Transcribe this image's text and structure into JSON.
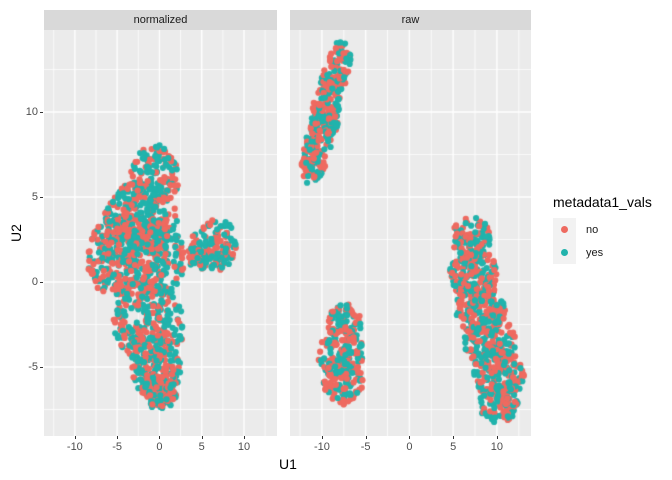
{
  "chart_data": {
    "type": "scatter",
    "title": "",
    "xlabel": "U1",
    "ylabel": "U2",
    "x_ticks": [
      -10,
      -5,
      0,
      5,
      10
    ],
    "y_ticks": [
      10,
      5,
      0,
      -5
    ],
    "xlim": [
      -13.65,
      13.9
    ],
    "ylim": [
      -9.06,
      14.82
    ],
    "grid": "white major+minor gridlines on gray panel",
    "legend_position": "right",
    "legend_title": "metadata1_vals",
    "series": [
      {
        "name": "no",
        "color": "#EE6A60"
      },
      {
        "name": "yes",
        "color": "#21B3AC"
      }
    ],
    "facets": [
      {
        "label": "normalized",
        "clusters": [
          {
            "cx": -0.5,
            "cy": 6.3,
            "rx": 2.9,
            "ry": 1.8,
            "n": 140
          },
          {
            "cx": -2.2,
            "cy": 3.8,
            "rx": 4.3,
            "ry": 2.1,
            "n": 250
          },
          {
            "cx": -5.4,
            "cy": 1.4,
            "rx": 3.1,
            "ry": 2.3,
            "n": 190
          },
          {
            "cx": -0.6,
            "cy": 1.4,
            "rx": 3.6,
            "ry": 2.3,
            "n": 240
          },
          {
            "cx": 4.6,
            "cy": 1.8,
            "rx": 1.3,
            "ry": 1.1,
            "n": 60
          },
          {
            "cx": 6.9,
            "cy": 2.2,
            "rx": 2.3,
            "ry": 1.5,
            "n": 110
          },
          {
            "cx": -1.2,
            "cy": -2.4,
            "rx": 4.3,
            "ry": 2.3,
            "n": 260
          },
          {
            "cx": -0.4,
            "cy": -5.0,
            "rx": 3.0,
            "ry": 1.9,
            "n": 180
          },
          {
            "cx": 0.1,
            "cy": -6.5,
            "rx": 1.9,
            "ry": 1.0,
            "n": 80
          }
        ]
      },
      {
        "label": "raw",
        "clusters": [
          {
            "cx": -11.0,
            "cy": 7.0,
            "rx": 1.4,
            "ry": 1.4,
            "n": 65
          },
          {
            "cx": -10.3,
            "cy": 8.5,
            "rx": 1.5,
            "ry": 1.5,
            "n": 75
          },
          {
            "cx": -9.5,
            "cy": 10.0,
            "rx": 1.6,
            "ry": 1.5,
            "n": 85
          },
          {
            "cx": -8.7,
            "cy": 11.5,
            "rx": 1.5,
            "ry": 1.4,
            "n": 75
          },
          {
            "cx": -8.0,
            "cy": 13.0,
            "rx": 1.3,
            "ry": 1.2,
            "n": 60
          },
          {
            "cx": -7.4,
            "cy": -2.4,
            "rx": 1.9,
            "ry": 1.1,
            "n": 85
          },
          {
            "cx": -7.9,
            "cy": -4.2,
            "rx": 2.6,
            "ry": 1.6,
            "n": 135
          },
          {
            "cx": -7.6,
            "cy": -5.9,
            "rx": 2.3,
            "ry": 1.3,
            "n": 95
          },
          {
            "cx": 7.0,
            "cy": 2.5,
            "rx": 2.2,
            "ry": 1.4,
            "n": 110
          },
          {
            "cx": 7.3,
            "cy": 0.5,
            "rx": 2.7,
            "ry": 1.5,
            "n": 150
          },
          {
            "cx": 8.1,
            "cy": -1.5,
            "rx": 2.9,
            "ry": 1.6,
            "n": 155
          },
          {
            "cx": 9.2,
            "cy": -3.5,
            "rx": 3.0,
            "ry": 1.6,
            "n": 160
          },
          {
            "cx": 10.2,
            "cy": -5.5,
            "rx": 2.9,
            "ry": 1.5,
            "n": 150
          },
          {
            "cx": 10.3,
            "cy": -7.2,
            "rx": 2.3,
            "ry": 1.1,
            "n": 90
          }
        ]
      }
    ]
  },
  "legend": {
    "title": "metadata1_vals",
    "entries": [
      {
        "label": "no",
        "color": "#EE6A60"
      },
      {
        "label": "yes",
        "color": "#21B3AC"
      }
    ],
    "key_bg": "#F2F2F2"
  },
  "theme": {
    "background": "#FFFFFF",
    "panel_bg": "#EBEBEB",
    "strip_bg": "#D9D9D9",
    "grid_color": "#FFFFFF",
    "tick_label_color": "#4D4D4D",
    "tick_mark_color": "#333333",
    "text_color": "#000000"
  }
}
